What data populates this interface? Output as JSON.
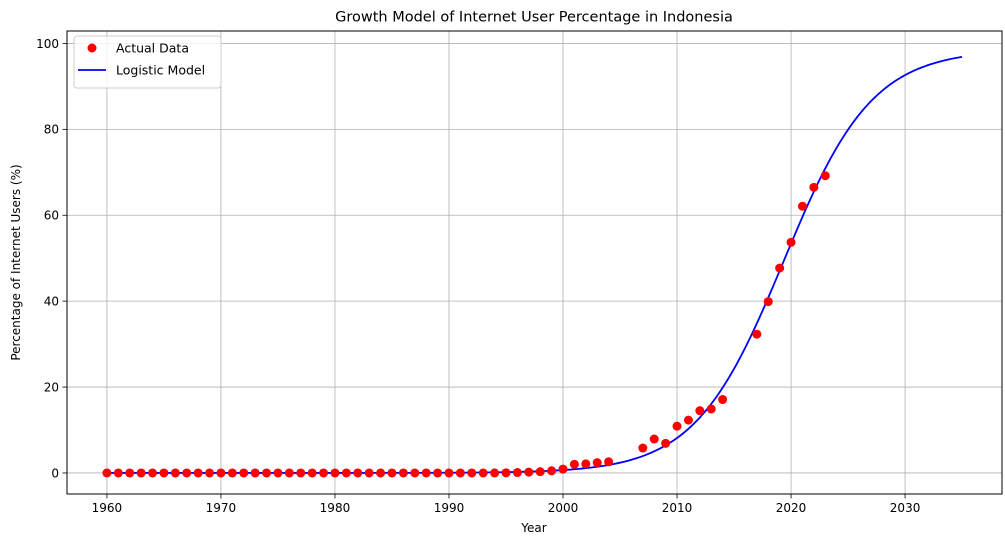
{
  "chart_data": {
    "type": "scatter",
    "title": "Growth Model of Internet User Percentage in Indonesia",
    "xlabel": "Year",
    "ylabel": "Percentage of Internet Users (%)",
    "xlim": [
      1956.5,
      2038.5
    ],
    "ylim": [
      -4.9,
      102.9
    ],
    "x_ticks": [
      1960,
      1970,
      1980,
      1990,
      2000,
      2010,
      2020,
      2030
    ],
    "y_ticks": [
      0,
      20,
      40,
      60,
      80,
      100
    ],
    "grid": true,
    "legend_position": "top-left",
    "series": [
      {
        "name": "Actual Data",
        "kind": "scatter",
        "color": "#ff0000",
        "points": [
          [
            1960,
            0
          ],
          [
            1961,
            0
          ],
          [
            1962,
            0
          ],
          [
            1963,
            0
          ],
          [
            1964,
            0
          ],
          [
            1965,
            0
          ],
          [
            1966,
            0
          ],
          [
            1967,
            0
          ],
          [
            1968,
            0
          ],
          [
            1969,
            0
          ],
          [
            1970,
            0
          ],
          [
            1971,
            0
          ],
          [
            1972,
            0
          ],
          [
            1973,
            0
          ],
          [
            1974,
            0
          ],
          [
            1975,
            0
          ],
          [
            1976,
            0
          ],
          [
            1977,
            0
          ],
          [
            1978,
            0
          ],
          [
            1979,
            0
          ],
          [
            1980,
            0
          ],
          [
            1981,
            0
          ],
          [
            1982,
            0
          ],
          [
            1983,
            0
          ],
          [
            1984,
            0
          ],
          [
            1985,
            0
          ],
          [
            1986,
            0
          ],
          [
            1987,
            0
          ],
          [
            1988,
            0
          ],
          [
            1989,
            0
          ],
          [
            1990,
            0
          ],
          [
            1991,
            0
          ],
          [
            1992,
            0
          ],
          [
            1993,
            0
          ],
          [
            1994,
            0.01
          ],
          [
            1995,
            0.03
          ],
          [
            1996,
            0.1
          ],
          [
            1997,
            0.2
          ],
          [
            1998,
            0.3
          ],
          [
            1999,
            0.5
          ],
          [
            2000,
            0.9
          ],
          [
            2001,
            2.0
          ],
          [
            2002,
            2.1
          ],
          [
            2003,
            2.4
          ],
          [
            2004,
            2.6
          ],
          [
            2007,
            5.8
          ],
          [
            2008,
            7.9
          ],
          [
            2009,
            6.9
          ],
          [
            2010,
            10.9
          ],
          [
            2011,
            12.3
          ],
          [
            2012,
            14.5
          ],
          [
            2013,
            14.9
          ],
          [
            2014,
            17.1
          ],
          [
            2017,
            32.3
          ],
          [
            2018,
            39.9
          ],
          [
            2019,
            47.7
          ],
          [
            2020,
            53.7
          ],
          [
            2021,
            62.1
          ],
          [
            2022,
            66.5
          ],
          [
            2023,
            69.2
          ]
        ]
      },
      {
        "name": "Logistic Model",
        "kind": "line",
        "color": "#0000ff",
        "x_range": [
          1960,
          2035
        ],
        "model": {
          "capacity": 98.6,
          "growth_rate": 0.2575,
          "midpoint_year": 2019.35
        }
      }
    ]
  }
}
